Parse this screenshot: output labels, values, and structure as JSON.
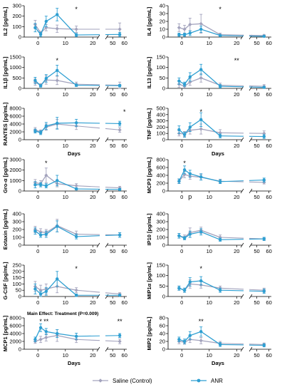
{
  "chart_data": [
    {
      "type": "line",
      "panel": "IL2",
      "ylabel": "IL2 [pg/mL]",
      "xlabel": "",
      "ylim": [
        0,
        300
      ],
      "yticks": [
        0,
        100,
        200,
        300
      ],
      "sig": [
        {
          "x": 14,
          "text": "*"
        }
      ],
      "series": [
        {
          "name": "Saline (Control)",
          "x": [
            -1,
            1,
            3,
            7,
            14,
            56
          ],
          "y": [
            120,
            40,
            90,
            80,
            75,
            75
          ],
          "err": [
            40,
            15,
            30,
            35,
            30,
            60
          ]
        },
        {
          "name": "ANR",
          "x": [
            -1,
            1,
            3,
            7,
            14,
            56
          ],
          "y": [
            90,
            25,
            150,
            215,
            20,
            25
          ],
          "err": [
            40,
            20,
            50,
            60,
            15,
            20
          ]
        }
      ]
    },
    {
      "type": "line",
      "panel": "IL4",
      "ylabel": "IL4 [pg/mL]",
      "xlabel": "",
      "ylim": [
        0,
        40
      ],
      "yticks": [
        0,
        10,
        20,
        30,
        40
      ],
      "sig": [
        {
          "x": 14,
          "text": "*"
        }
      ],
      "series": [
        {
          "name": "Saline (Control)",
          "x": [
            -1,
            1,
            3,
            7,
            14,
            56
          ],
          "y": [
            12,
            10,
            16,
            17,
            3,
            2
          ],
          "err": [
            5,
            5,
            8,
            12,
            2,
            1
          ]
        },
        {
          "name": "ANR",
          "x": [
            -1,
            1,
            3,
            7,
            14,
            56
          ],
          "y": [
            3,
            3,
            5,
            10,
            2,
            1
          ],
          "err": [
            2,
            2,
            3,
            4,
            1,
            1
          ]
        }
      ]
    },
    {
      "type": "line",
      "panel": "IL1b",
      "ylabel": "IL1β [pg/mL]",
      "xlabel": "",
      "ylim": [
        0,
        1500
      ],
      "yticks": [
        0,
        500,
        1000,
        1500
      ],
      "sig": [
        {
          "x": 7,
          "text": "*"
        }
      ],
      "series": [
        {
          "name": "Saline (Control)",
          "x": [
            -1,
            1,
            3,
            7,
            14,
            56
          ],
          "y": [
            300,
            150,
            400,
            380,
            200,
            150
          ],
          "err": [
            150,
            80,
            200,
            200,
            100,
            150
          ]
        },
        {
          "name": "ANR",
          "x": [
            -1,
            1,
            3,
            7,
            14,
            56
          ],
          "y": [
            380,
            120,
            480,
            860,
            150,
            130
          ],
          "err": [
            150,
            60,
            180,
            250,
            60,
            60
          ]
        }
      ]
    },
    {
      "type": "line",
      "panel": "IL13",
      "ylabel": "IL13 [pg/mL]",
      "xlabel": "",
      "ylim": [
        0,
        150
      ],
      "yticks": [
        0,
        50,
        100,
        150
      ],
      "sig": [
        {
          "x": 20,
          "text": "**"
        }
      ],
      "series": [
        {
          "name": "Saline (Control)",
          "x": [
            -1,
            1,
            3,
            7,
            14,
            56
          ],
          "y": [
            20,
            10,
            30,
            50,
            15,
            10
          ],
          "err": [
            15,
            8,
            15,
            20,
            10,
            8
          ]
        },
        {
          "name": "ANR",
          "x": [
            -1,
            1,
            3,
            7,
            14,
            56
          ],
          "y": [
            35,
            20,
            55,
            90,
            10,
            5
          ],
          "err": [
            15,
            10,
            20,
            25,
            8,
            5
          ]
        }
      ]
    },
    {
      "type": "line",
      "panel": "RANTES",
      "ylabel": "RANTES [pg/mL]",
      "xlabel": "Days",
      "ylim": [
        0,
        8000
      ],
      "yticks": [
        0,
        2000,
        4000,
        6000,
        8000
      ],
      "sig": [
        {
          "x": 60,
          "text": "*"
        }
      ],
      "series": [
        {
          "name": "Saline (Control)",
          "x": [
            -1,
            1,
            3,
            7,
            14,
            56
          ],
          "y": [
            2500,
            2000,
            3200,
            4000,
            3500,
            2500
          ],
          "err": [
            600,
            500,
            800,
            1200,
            900,
            600
          ]
        },
        {
          "name": "ANR",
          "x": [
            -1,
            1,
            3,
            7,
            14,
            56
          ],
          "y": [
            2200,
            1800,
            3500,
            4200,
            4300,
            4100
          ],
          "err": [
            500,
            500,
            900,
            1500,
            900,
            600
          ]
        }
      ]
    },
    {
      "type": "line",
      "panel": "TNF",
      "ylabel": "TNF [pg/mL]",
      "xlabel": "Days",
      "ylim": [
        0,
        500
      ],
      "yticks": [
        0,
        100,
        200,
        300,
        400,
        500
      ],
      "sig": [
        {
          "x": 7,
          "text": "*"
        }
      ],
      "series": [
        {
          "name": "Saline (Control)",
          "x": [
            -1,
            1,
            3,
            7,
            14,
            56
          ],
          "y": [
            100,
            90,
            150,
            170,
            110,
            100
          ],
          "err": [
            40,
            40,
            60,
            80,
            50,
            40
          ]
        },
        {
          "name": "ANR",
          "x": [
            -1,
            1,
            3,
            7,
            14,
            56
          ],
          "y": [
            160,
            80,
            200,
            320,
            60,
            50
          ],
          "err": [
            60,
            40,
            70,
            110,
            30,
            30
          ]
        }
      ]
    },
    {
      "type": "line",
      "panel": "Gro-a",
      "ylabel": "Gro-α [pg/mL]",
      "xlabel": "",
      "ylim": [
        0,
        3000
      ],
      "yticks": [
        0,
        1000,
        2000,
        3000
      ],
      "sig": [
        {
          "x": 3,
          "text": "*"
        }
      ],
      "series": [
        {
          "name": "Saline (Control)",
          "x": [
            -1,
            1,
            3,
            7,
            14,
            56
          ],
          "y": [
            800,
            700,
            1500,
            700,
            500,
            300
          ],
          "err": [
            300,
            300,
            700,
            300,
            200,
            150
          ]
        },
        {
          "name": "ANR",
          "x": [
            -1,
            1,
            3,
            7,
            14,
            56
          ],
          "y": [
            600,
            600,
            500,
            1000,
            200,
            150
          ],
          "err": [
            300,
            200,
            200,
            500,
            100,
            80
          ]
        }
      ]
    },
    {
      "type": "line",
      "panel": "MCP3",
      "ylabel": "MCP3 [pg/mL]",
      "xlabel": "",
      "ylim": [
        0,
        800
      ],
      "yticks": [
        0,
        200,
        400,
        600,
        800
      ],
      "sig": [
        {
          "x": 1,
          "text": "*"
        },
        {
          "x": 3,
          "text": "p"
        }
      ],
      "series": [
        {
          "name": "Saline (Control)",
          "x": [
            -1,
            1,
            3,
            7,
            14,
            56
          ],
          "y": [
            250,
            420,
            380,
            350,
            250,
            220
          ],
          "err": [
            50,
            80,
            80,
            70,
            50,
            40
          ]
        },
        {
          "name": "ANR",
          "x": [
            -1,
            1,
            3,
            7,
            14,
            56
          ],
          "y": [
            250,
            540,
            440,
            360,
            240,
            280
          ],
          "err": [
            60,
            100,
            90,
            80,
            50,
            50
          ]
        }
      ]
    },
    {
      "type": "line",
      "panel": "Eotaxin",
      "ylabel": "Eotaxin [pg/mL]",
      "xlabel": "",
      "ylim": [
        0,
        400
      ],
      "yticks": [
        0,
        100,
        200,
        300,
        400
      ],
      "sig": [],
      "series": [
        {
          "name": "Saline (Control)",
          "x": [
            -1,
            1,
            3,
            7,
            14,
            56
          ],
          "y": [
            200,
            170,
            160,
            250,
            140,
            130
          ],
          "err": [
            40,
            40,
            40,
            80,
            40,
            30
          ]
        },
        {
          "name": "ANR",
          "x": [
            -1,
            1,
            3,
            7,
            14,
            56
          ],
          "y": [
            180,
            130,
            140,
            240,
            110,
            130
          ],
          "err": [
            40,
            30,
            40,
            70,
            30,
            30
          ]
        }
      ]
    },
    {
      "type": "line",
      "panel": "IP10",
      "ylabel": "IP10 [pg/mL]",
      "xlabel": "",
      "ylim": [
        0,
        400
      ],
      "yticks": [
        0,
        100,
        200,
        300,
        400
      ],
      "sig": [],
      "series": [
        {
          "name": "Saline (Control)",
          "x": [
            -1,
            1,
            3,
            7,
            14,
            56
          ],
          "y": [
            120,
            100,
            160,
            190,
            100,
            80
          ],
          "err": [
            30,
            30,
            60,
            40,
            30,
            20
          ]
        },
        {
          "name": "ANR",
          "x": [
            -1,
            1,
            3,
            7,
            14,
            56
          ],
          "y": [
            120,
            90,
            140,
            170,
            70,
            80
          ],
          "err": [
            30,
            20,
            40,
            40,
            20,
            20
          ]
        }
      ]
    },
    {
      "type": "line",
      "panel": "G-CSF",
      "ylabel": "G-CSF [pg/mL]",
      "xlabel": "",
      "ylim": [
        0,
        250
      ],
      "yticks": [
        0,
        50,
        100,
        150,
        200,
        250
      ],
      "sig": [
        {
          "x": 14,
          "text": "*"
        }
      ],
      "series": [
        {
          "name": "Saline (Control)",
          "x": [
            -1,
            1,
            3,
            7,
            14,
            56
          ],
          "y": [
            80,
            50,
            60,
            80,
            50,
            20
          ],
          "err": [
            40,
            40,
            40,
            50,
            20,
            10
          ]
        },
        {
          "name": "ANR",
          "x": [
            -1,
            1,
            3,
            7,
            14,
            56
          ],
          "y": [
            60,
            20,
            40,
            140,
            10,
            10
          ],
          "err": [
            40,
            20,
            30,
            60,
            10,
            5
          ]
        }
      ]
    },
    {
      "type": "line",
      "panel": "MIP1a",
      "ylabel": "MIP1α [pg/mL]",
      "xlabel": "",
      "ylim": [
        0,
        150
      ],
      "yticks": [
        0,
        50,
        100,
        150
      ],
      "sig": [
        {
          "x": 7,
          "text": "*"
        }
      ],
      "series": [
        {
          "name": "Saline (Control)",
          "x": [
            -1,
            1,
            3,
            7,
            14,
            56
          ],
          "y": [
            40,
            30,
            60,
            55,
            40,
            30
          ],
          "err": [
            10,
            10,
            20,
            15,
            10,
            10
          ]
        },
        {
          "name": "ANR",
          "x": [
            -1,
            1,
            3,
            7,
            14,
            56
          ],
          "y": [
            40,
            30,
            70,
            75,
            30,
            25
          ],
          "err": [
            10,
            10,
            20,
            20,
            10,
            10
          ]
        }
      ]
    },
    {
      "type": "line",
      "panel": "MCP1",
      "ylabel": "MCP1 [pg/mL]",
      "xlabel": "Days",
      "ylim": [
        0,
        8000
      ],
      "yticks": [
        0,
        2000,
        4000,
        6000,
        8000
      ],
      "annotation": "Main Effect: Treatment (P=0.009)",
      "sig": [
        {
          "x": 1,
          "text": "*"
        },
        {
          "x": 3,
          "text": "**"
        },
        {
          "x": 56,
          "text": "**"
        }
      ],
      "series": [
        {
          "name": "Saline (Control)",
          "x": [
            -1,
            1,
            3,
            7,
            14,
            56
          ],
          "y": [
            2000,
            2500,
            3000,
            3500,
            2500,
            2000
          ],
          "err": [
            500,
            800,
            900,
            1500,
            800,
            600
          ]
        },
        {
          "name": "ANR",
          "x": [
            -1,
            1,
            3,
            7,
            14,
            56
          ],
          "y": [
            2500,
            5500,
            4500,
            4000,
            3300,
            3500
          ],
          "err": [
            600,
            1000,
            800,
            1000,
            800,
            500
          ]
        }
      ]
    },
    {
      "type": "line",
      "panel": "MIP2",
      "ylabel": "MIP2 [pg/mL]",
      "xlabel": "Days",
      "ylim": [
        0,
        80
      ],
      "yticks": [
        0,
        20,
        40,
        60,
        80
      ],
      "sig": [
        {
          "x": 7,
          "text": "**"
        }
      ],
      "series": [
        {
          "name": "Saline (Control)",
          "x": [
            -1,
            1,
            3,
            7,
            14,
            56
          ],
          "y": [
            20,
            18,
            25,
            22,
            15,
            12
          ],
          "err": [
            6,
            5,
            8,
            8,
            5,
            4
          ]
        },
        {
          "name": "ANR",
          "x": [
            -1,
            1,
            3,
            7,
            14,
            56
          ],
          "y": [
            25,
            20,
            35,
            45,
            12,
            10
          ],
          "err": [
            6,
            6,
            10,
            12,
            5,
            4
          ]
        }
      ]
    }
  ],
  "xticks_left": [
    "0",
    "10",
    "20"
  ],
  "xticks_right": [
    "50",
    "60"
  ],
  "legend": [
    {
      "label": "Saline (Control)",
      "color": "#a3a3bd"
    },
    {
      "label": "ANR",
      "color": "#2e9fd2"
    }
  ]
}
